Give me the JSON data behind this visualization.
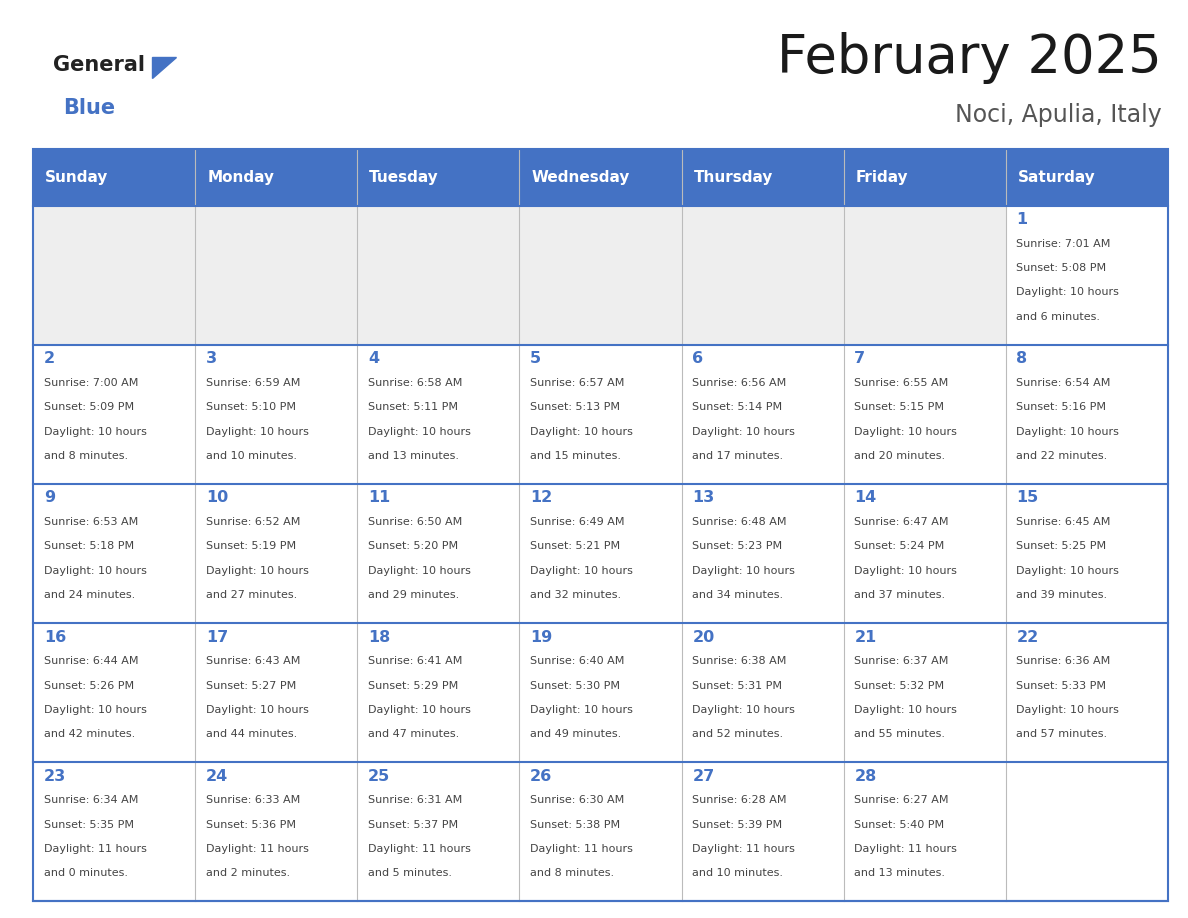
{
  "title": "February 2025",
  "subtitle": "Noci, Apulia, Italy",
  "header_bg": "#4472C4",
  "header_text": "#FFFFFF",
  "header_days": [
    "Sunday",
    "Monday",
    "Tuesday",
    "Wednesday",
    "Thursday",
    "Friday",
    "Saturday"
  ],
  "border_color": "#4472C4",
  "day_number_color": "#4472C4",
  "info_color": "#444444",
  "empty_cell_bg": "#EEEEEE",
  "normal_cell_bg": "#FFFFFF",
  "calendar": [
    [
      null,
      null,
      null,
      null,
      null,
      null,
      {
        "day": 1,
        "sunrise": "7:01 AM",
        "sunset": "5:08 PM",
        "daylight": "10 hours and 6 minutes."
      }
    ],
    [
      {
        "day": 2,
        "sunrise": "7:00 AM",
        "sunset": "5:09 PM",
        "daylight": "10 hours and 8 minutes."
      },
      {
        "day": 3,
        "sunrise": "6:59 AM",
        "sunset": "5:10 PM",
        "daylight": "10 hours and 10 minutes."
      },
      {
        "day": 4,
        "sunrise": "6:58 AM",
        "sunset": "5:11 PM",
        "daylight": "10 hours and 13 minutes."
      },
      {
        "day": 5,
        "sunrise": "6:57 AM",
        "sunset": "5:13 PM",
        "daylight": "10 hours and 15 minutes."
      },
      {
        "day": 6,
        "sunrise": "6:56 AM",
        "sunset": "5:14 PM",
        "daylight": "10 hours and 17 minutes."
      },
      {
        "day": 7,
        "sunrise": "6:55 AM",
        "sunset": "5:15 PM",
        "daylight": "10 hours and 20 minutes."
      },
      {
        "day": 8,
        "sunrise": "6:54 AM",
        "sunset": "5:16 PM",
        "daylight": "10 hours and 22 minutes."
      }
    ],
    [
      {
        "day": 9,
        "sunrise": "6:53 AM",
        "sunset": "5:18 PM",
        "daylight": "10 hours and 24 minutes."
      },
      {
        "day": 10,
        "sunrise": "6:52 AM",
        "sunset": "5:19 PM",
        "daylight": "10 hours and 27 minutes."
      },
      {
        "day": 11,
        "sunrise": "6:50 AM",
        "sunset": "5:20 PM",
        "daylight": "10 hours and 29 minutes."
      },
      {
        "day": 12,
        "sunrise": "6:49 AM",
        "sunset": "5:21 PM",
        "daylight": "10 hours and 32 minutes."
      },
      {
        "day": 13,
        "sunrise": "6:48 AM",
        "sunset": "5:23 PM",
        "daylight": "10 hours and 34 minutes."
      },
      {
        "day": 14,
        "sunrise": "6:47 AM",
        "sunset": "5:24 PM",
        "daylight": "10 hours and 37 minutes."
      },
      {
        "day": 15,
        "sunrise": "6:45 AM",
        "sunset": "5:25 PM",
        "daylight": "10 hours and 39 minutes."
      }
    ],
    [
      {
        "day": 16,
        "sunrise": "6:44 AM",
        "sunset": "5:26 PM",
        "daylight": "10 hours and 42 minutes."
      },
      {
        "day": 17,
        "sunrise": "6:43 AM",
        "sunset": "5:27 PM",
        "daylight": "10 hours and 44 minutes."
      },
      {
        "day": 18,
        "sunrise": "6:41 AM",
        "sunset": "5:29 PM",
        "daylight": "10 hours and 47 minutes."
      },
      {
        "day": 19,
        "sunrise": "6:40 AM",
        "sunset": "5:30 PM",
        "daylight": "10 hours and 49 minutes."
      },
      {
        "day": 20,
        "sunrise": "6:38 AM",
        "sunset": "5:31 PM",
        "daylight": "10 hours and 52 minutes."
      },
      {
        "day": 21,
        "sunrise": "6:37 AM",
        "sunset": "5:32 PM",
        "daylight": "10 hours and 55 minutes."
      },
      {
        "day": 22,
        "sunrise": "6:36 AM",
        "sunset": "5:33 PM",
        "daylight": "10 hours and 57 minutes."
      }
    ],
    [
      {
        "day": 23,
        "sunrise": "6:34 AM",
        "sunset": "5:35 PM",
        "daylight": "11 hours and 0 minutes."
      },
      {
        "day": 24,
        "sunrise": "6:33 AM",
        "sunset": "5:36 PM",
        "daylight": "11 hours and 2 minutes."
      },
      {
        "day": 25,
        "sunrise": "6:31 AM",
        "sunset": "5:37 PM",
        "daylight": "11 hours and 5 minutes."
      },
      {
        "day": 26,
        "sunrise": "6:30 AM",
        "sunset": "5:38 PM",
        "daylight": "11 hours and 8 minutes."
      },
      {
        "day": 27,
        "sunrise": "6:28 AM",
        "sunset": "5:39 PM",
        "daylight": "11 hours and 10 minutes."
      },
      {
        "day": 28,
        "sunrise": "6:27 AM",
        "sunset": "5:40 PM",
        "daylight": "11 hours and 13 minutes."
      },
      null
    ]
  ]
}
